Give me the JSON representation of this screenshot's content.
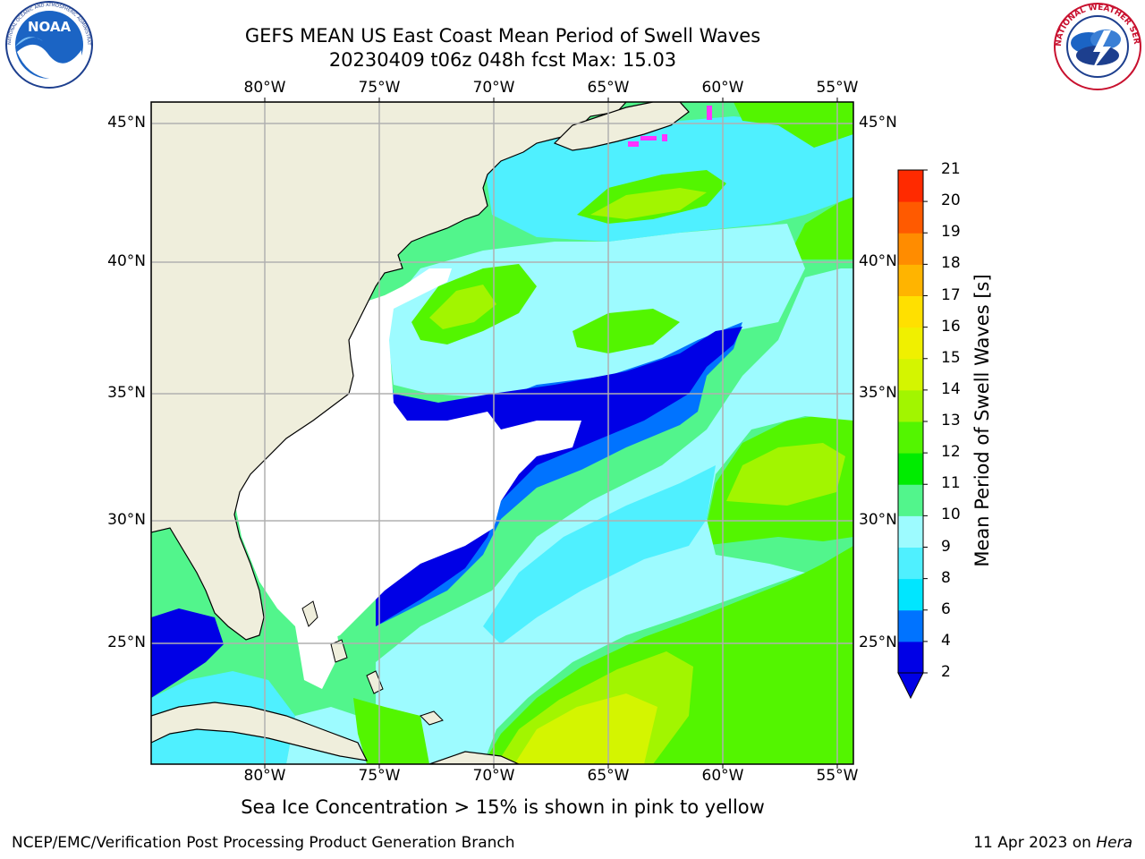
{
  "header": {
    "title_line1": "GEFS MEAN US East Coast Mean Period of Swell Waves",
    "title_line2": "20230409 t06z 048h fcst   Max: 15.03"
  },
  "logos": {
    "noaa": {
      "text": "NOAA",
      "ring_text": "NATIONAL OCEANIC AND ATMOSPHERIC ADMINISTRATION · U.S. DEPARTMENT OF COMMERCE"
    },
    "nws": {
      "ring_text": "NATIONAL WEATHER SERVICE"
    }
  },
  "map": {
    "lon_labels": [
      "80°W",
      "75°W",
      "70°W",
      "65°W",
      "60°W",
      "55°W"
    ],
    "lat_labels": [
      "45°N",
      "40°N",
      "35°N",
      "30°N",
      "25°N"
    ],
    "colors": {
      "land": "#efeedc",
      "gridline": "#b0b0b0",
      "no_data": "#ffffff",
      "sea_ice": "#ff33ff"
    }
  },
  "colorbar": {
    "label": "Mean Period of Swell Waves [s]",
    "ticks": [
      "2",
      "4",
      "6",
      "8",
      "9",
      "10",
      "11",
      "12",
      "13",
      "14",
      "15",
      "16",
      "17",
      "18",
      "19",
      "20",
      "21"
    ],
    "colors": [
      "#0000e6",
      "#0073ff",
      "#00e6ff",
      "#4ff0ff",
      "#9dfbff",
      "#52f58c",
      "#00ec00",
      "#53f500",
      "#a2f500",
      "#d4f500",
      "#f0f000",
      "#ffe000",
      "#ffb400",
      "#ff8c00",
      "#ff5a00",
      "#ff2a00"
    ],
    "under_color": "#0000e6"
  },
  "note": "Sea Ice Concentration > 15% is shown in pink to yellow",
  "footer": {
    "left": "NCEP/EMC/Verification Post Processing Product Generation Branch",
    "date": "11 Apr 2023 on",
    "machine": "Hera"
  }
}
